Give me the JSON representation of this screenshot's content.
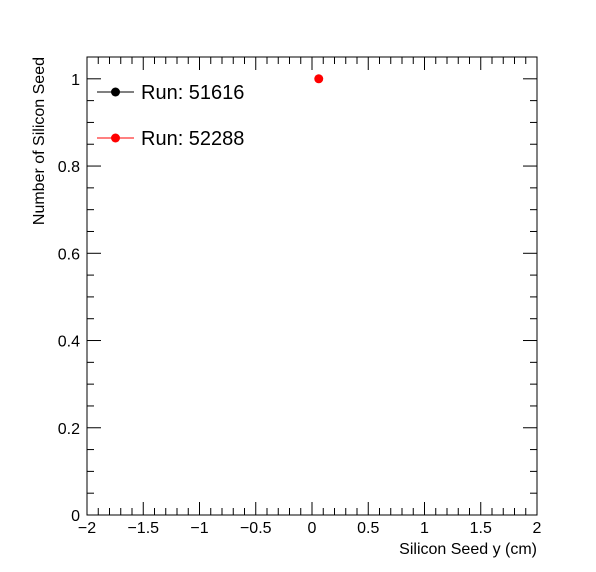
{
  "chart_data": {
    "type": "scatter",
    "xlabel": "Silicon Seed y (cm)",
    "ylabel": "Number of Silicon Seed",
    "xlim": [
      -2,
      2
    ],
    "ylim": [
      0,
      1.05
    ],
    "x_ticks": [
      -2,
      -1.5,
      -1,
      -0.5,
      0,
      0.5,
      1,
      1.5,
      2
    ],
    "x_tick_labels": [
      "−2",
      "−1.5",
      "−1",
      "−0.5",
      "0",
      "0.5",
      "1",
      "1.5",
      "2"
    ],
    "y_ticks": [
      0,
      0.2,
      0.4,
      0.6,
      0.8,
      1
    ],
    "y_tick_labels": [
      "0",
      "0.2",
      "0.4",
      "0.6",
      "0.8",
      "1"
    ],
    "grid": false,
    "legend_position": "top-left",
    "series": [
      {
        "name": "Run: 51616",
        "color": "#000000",
        "points": []
      },
      {
        "name": "Run: 52288",
        "color": "#ff0000",
        "points": [
          {
            "x": 0.06,
            "y": 1.0
          }
        ]
      }
    ]
  }
}
